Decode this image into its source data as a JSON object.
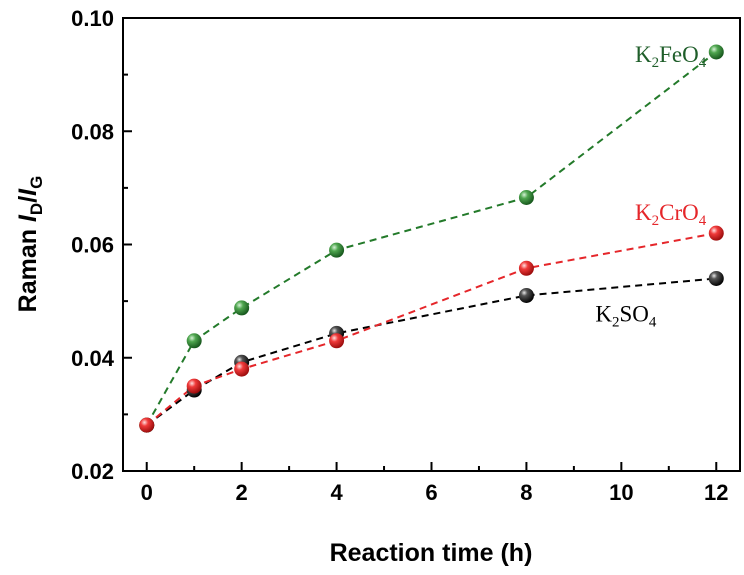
{
  "chart_data": {
    "type": "line",
    "xlabel": "Reaction time (h)",
    "ylabel": {
      "prefix": "Raman ",
      "i1": "I",
      "sub1": "D",
      "slash": "/",
      "i2": "I",
      "sub2": "G"
    },
    "xlim": [
      -0.5,
      12.5
    ],
    "ylim": [
      0.02,
      0.1
    ],
    "xticks": [
      0,
      2,
      4,
      6,
      8,
      10,
      12
    ],
    "xtick_labels": [
      "0",
      "2",
      "4",
      "6",
      "8",
      "10",
      "12"
    ],
    "yticks": [
      0.02,
      0.04,
      0.06,
      0.08,
      0.1
    ],
    "ytick_labels": [
      "0.02",
      "0.04",
      "0.06",
      "0.08",
      "0.10"
    ],
    "grid": false,
    "line_style": "dashed",
    "series": [
      {
        "name": "K2FeO4",
        "label_parts": [
          [
            "K",
            false
          ],
          [
            "2",
            true
          ],
          [
            "FeO",
            false
          ],
          [
            "4",
            true
          ]
        ],
        "color": "#237a2a",
        "label_color": "#1f5e2a",
        "x": [
          0,
          1,
          2,
          4,
          8,
          12
        ],
        "y": [
          0.0281,
          0.043,
          0.0488,
          0.059,
          0.0683,
          0.094
        ]
      },
      {
        "name": "K2CrO4",
        "label_parts": [
          [
            "K",
            false
          ],
          [
            "2",
            true
          ],
          [
            "CrO",
            false
          ],
          [
            "4",
            true
          ]
        ],
        "color": "#e5262a",
        "label_color": "#e5262a",
        "x": [
          0,
          1,
          2,
          4,
          8,
          12
        ],
        "y": [
          0.0281,
          0.035,
          0.038,
          0.043,
          0.0558,
          0.062
        ]
      },
      {
        "name": "K2SO4",
        "label_parts": [
          [
            "K",
            false
          ],
          [
            "2",
            true
          ],
          [
            "SO",
            false
          ],
          [
            "4",
            true
          ]
        ],
        "color": "#000000",
        "label_color": "#000000",
        "x": [
          0,
          1,
          2,
          4,
          8,
          12
        ],
        "y": [
          0.0281,
          0.0343,
          0.0392,
          0.0443,
          0.051,
          0.054
        ]
      }
    ]
  }
}
